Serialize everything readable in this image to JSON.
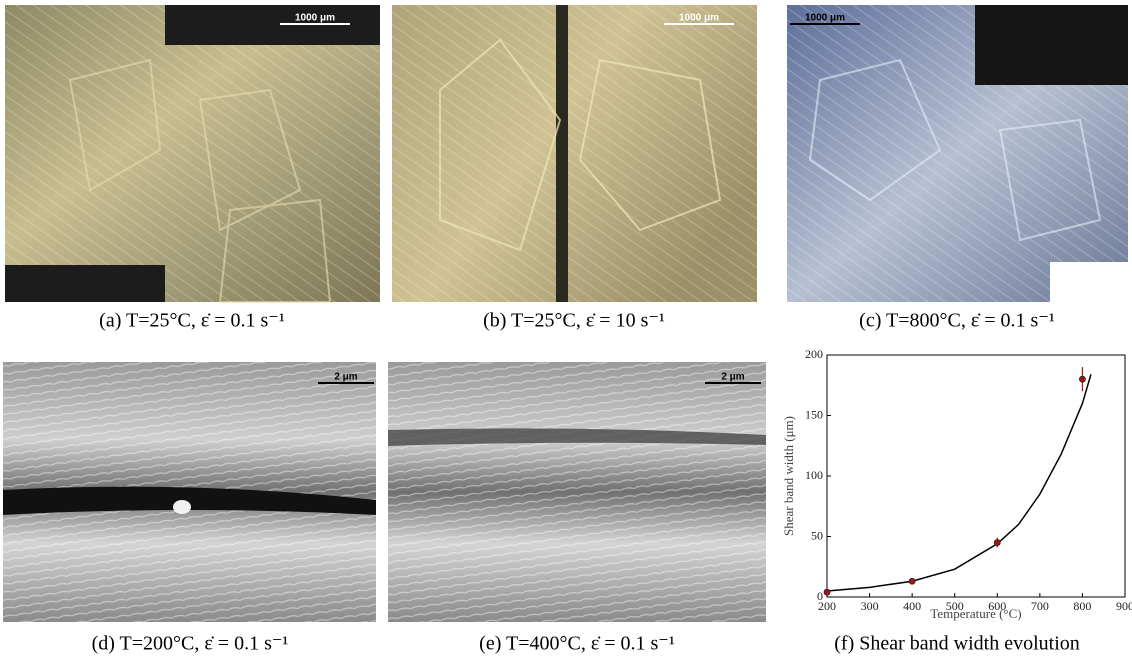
{
  "panels": [
    {
      "caption": "(a) T=25°C, ε̇ = 0.1 s⁻¹",
      "scale": "1000 μm"
    },
    {
      "caption": "(b) T=25°C, ε̇ = 10 s⁻¹",
      "scale": "1000 μm"
    },
    {
      "caption": "(c) T=800°C, ε̇ = 0.1 s⁻¹",
      "scale": "1000 μm"
    },
    {
      "caption": "(d) T=200°C, ε̇ = 0.1 s⁻¹",
      "scale": "2 μm"
    },
    {
      "caption": "(e) T=400°C, ε̇ = 0.1 s⁻¹",
      "scale": "2 μm"
    }
  ],
  "chart_data": {
    "type": "scatter",
    "caption": "(f) Shear band width evolution",
    "xlabel": "Temperature (°C)",
    "ylabel": "Shear band width (μm)",
    "x": [
      200,
      400,
      600,
      800
    ],
    "values": [
      4,
      13,
      45,
      180
    ],
    "errors": [
      1,
      1,
      4,
      10
    ],
    "color": "#b01010",
    "fit": {
      "x": [
        200,
        300,
        400,
        500,
        600,
        650,
        700,
        750,
        800,
        820
      ],
      "values": [
        5,
        8,
        13,
        23,
        44,
        60,
        85,
        118,
        160,
        184
      ],
      "color": "#000000"
    },
    "xlim": [
      200,
      900
    ],
    "ylim": [
      0,
      200
    ],
    "xticks": [
      200,
      300,
      400,
      500,
      600,
      700,
      800,
      900
    ],
    "yticks": [
      0,
      50,
      100,
      150,
      200
    ]
  }
}
